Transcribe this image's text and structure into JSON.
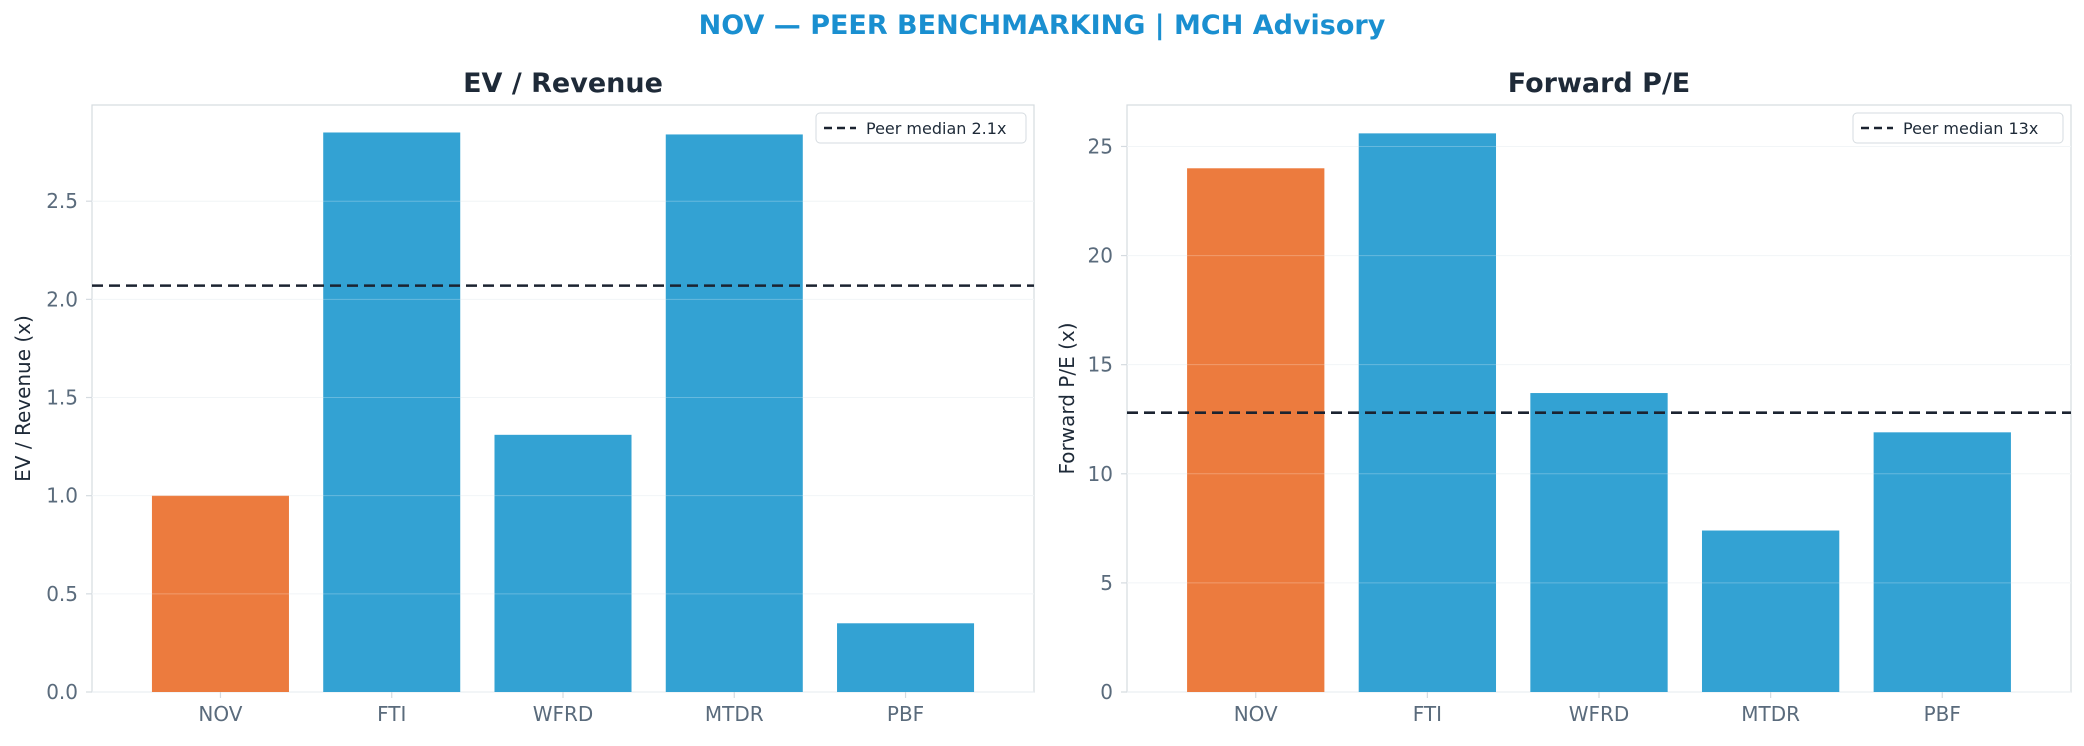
{
  "figure": {
    "title": "NOV — PEER BENCHMARKING | MCH Advisory",
    "colors": {
      "title": "#1a8fd0",
      "highlight": "#ec7b3e",
      "peer": "#33a2d3",
      "median_line": "#1b2330",
      "panel_title": "#1e2a38",
      "tick_text": "#5a6b7c",
      "axis_label": "#1e2a38",
      "spine": "#d5dbe0",
      "grid": "#eef2f5"
    }
  },
  "chart_data": [
    {
      "type": "bar",
      "title": "EV / Revenue",
      "xlabel": "",
      "ylabel": "EV / Revenue (x)",
      "categories": [
        "NOV",
        "FTI",
        "WFRD",
        "MTDR",
        "PBF"
      ],
      "values": [
        1.0,
        2.85,
        1.31,
        2.84,
        0.35
      ],
      "highlight": "NOV",
      "ylim": [
        0,
        2.99
      ],
      "yticks": [
        0.0,
        0.5,
        1.0,
        1.5,
        2.0,
        2.5
      ],
      "ytick_labels": [
        "0.0",
        "0.5",
        "1.0",
        "1.5",
        "2.0",
        "2.5"
      ],
      "grid": true,
      "reference_line": {
        "value": 2.07,
        "style": "dashed",
        "label": "Peer median 2.1x"
      },
      "legend_position": "top-right"
    },
    {
      "type": "bar",
      "title": "Forward P/E",
      "xlabel": "",
      "ylabel": "Forward P/E (x)",
      "categories": [
        "NOV",
        "FTI",
        "WFRD",
        "MTDR",
        "PBF"
      ],
      "values": [
        24.0,
        25.6,
        13.7,
        7.4,
        11.9
      ],
      "highlight": "NOV",
      "ylim": [
        0,
        26.9
      ],
      "yticks": [
        0,
        5,
        10,
        15,
        20,
        25
      ],
      "ytick_labels": [
        "0",
        "5",
        "10",
        "15",
        "20",
        "25"
      ],
      "grid": true,
      "reference_line": {
        "value": 12.8,
        "style": "dashed",
        "label": "Peer median 13x"
      },
      "legend_position": "top-right"
    }
  ]
}
